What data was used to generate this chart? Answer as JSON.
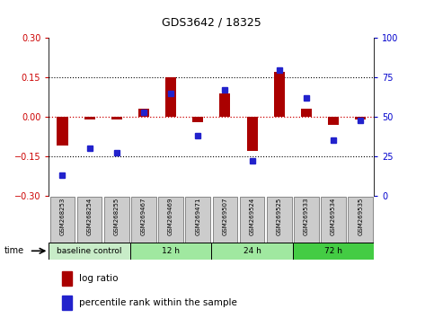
{
  "title": "GDS3642 / 18325",
  "samples": [
    "GSM268253",
    "GSM268254",
    "GSM268255",
    "GSM269467",
    "GSM269469",
    "GSM269471",
    "GSM269507",
    "GSM269524",
    "GSM269525",
    "GSM269533",
    "GSM269534",
    "GSM269535"
  ],
  "log_ratio": [
    -0.11,
    -0.01,
    -0.01,
    0.03,
    0.15,
    -0.02,
    0.09,
    -0.13,
    0.17,
    0.03,
    -0.03,
    -0.01
  ],
  "percentile_rank": [
    13,
    30,
    27,
    53,
    65,
    38,
    67,
    22,
    80,
    62,
    35,
    48
  ],
  "ylim_left": [
    -0.3,
    0.3
  ],
  "ylim_right": [
    0,
    100
  ],
  "yticks_left": [
    -0.3,
    -0.15,
    0.0,
    0.15,
    0.3
  ],
  "yticks_right": [
    0,
    25,
    50,
    75,
    100
  ],
  "dotted_lines": [
    -0.15,
    0.15
  ],
  "zero_line": 0.0,
  "groups": [
    {
      "label": "baseline control",
      "start": 0,
      "end": 3,
      "color": "#c8ecc8"
    },
    {
      "label": "12 h",
      "start": 3,
      "end": 6,
      "color": "#a0e8a0"
    },
    {
      "label": "24 h",
      "start": 6,
      "end": 9,
      "color": "#a0e8a0"
    },
    {
      "label": "72 h",
      "start": 9,
      "end": 12,
      "color": "#44cc44"
    }
  ],
  "bar_color": "#aa0000",
  "dot_color": "#2222cc",
  "bg_color": "#ffffff",
  "plot_bg": "#ffffff",
  "label_color_left": "#cc0000",
  "label_color_right": "#0000cc",
  "sample_box_color": "#cccccc",
  "sample_box_edge": "#888888",
  "time_label": "time",
  "legend_log_ratio": "log ratio",
  "legend_percentile": "percentile rank within the sample",
  "bar_width": 0.4,
  "dot_size": 5
}
